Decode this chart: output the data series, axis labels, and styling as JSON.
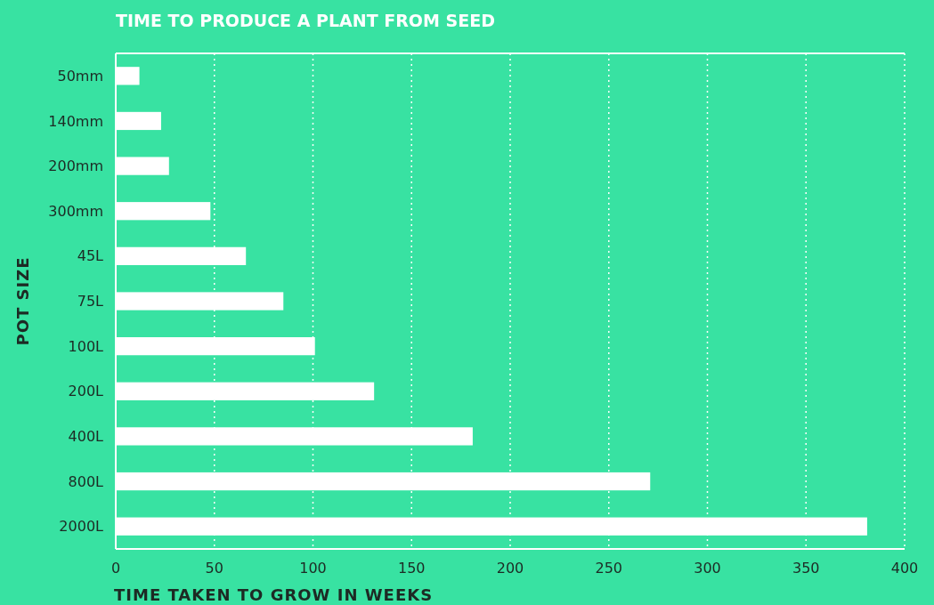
{
  "chart_data": {
    "type": "bar",
    "orientation": "horizontal",
    "title": "TIME TO PRODUCE A PLANT FROM SEED",
    "xlabel": "TIME TAKEN TO GROW IN WEEKS",
    "ylabel": "POT SIZE",
    "categories": [
      "50mm",
      "140mm",
      "200mm",
      "300mm",
      "45L",
      "75L",
      "100L",
      "200L",
      "400L",
      "800L",
      "2000L"
    ],
    "values": [
      12,
      23,
      27,
      48,
      66,
      85,
      101,
      131,
      181,
      271,
      381
    ],
    "color": "#ffffff",
    "xlim": [
      0,
      400
    ],
    "xticks": [
      0,
      50,
      100,
      150,
      200,
      250,
      300,
      350,
      400
    ],
    "grid": "x"
  }
}
